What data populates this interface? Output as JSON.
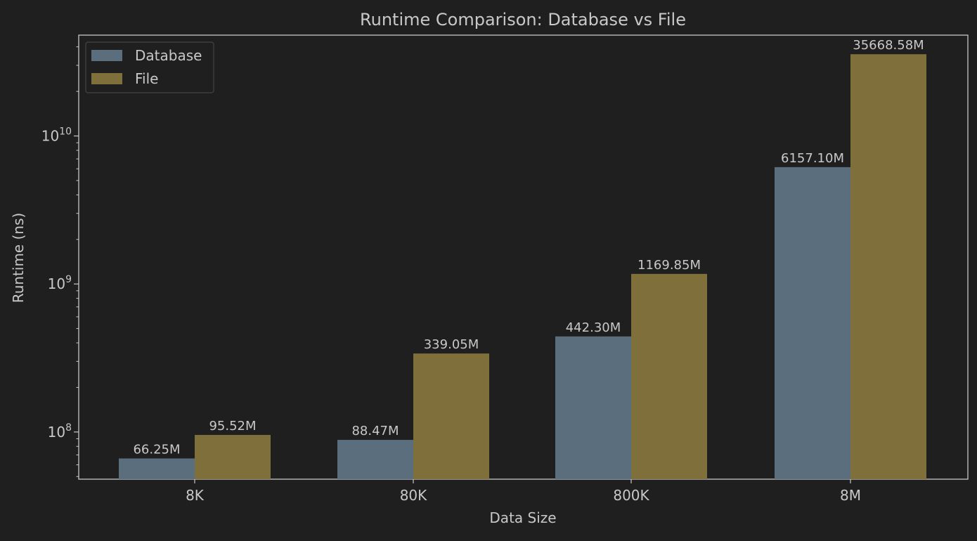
{
  "chart_data": {
    "type": "bar",
    "title": "Runtime Comparison: Database vs File",
    "xlabel": "Data Size",
    "ylabel": "Runtime (ns)",
    "categories": [
      "8K",
      "80K",
      "800K",
      "8M"
    ],
    "yscale": "log",
    "ylim": [
      48000000,
      48000000000
    ],
    "yticks": [
      {
        "value": 100000000,
        "base": "10",
        "exp": "8"
      },
      {
        "value": 1000000000,
        "base": "10",
        "exp": "9"
      },
      {
        "value": 10000000000,
        "base": "10",
        "exp": "10"
      }
    ],
    "grid": false,
    "legend_position": "top-left",
    "series": [
      {
        "name": "Database",
        "color": "#5a6e7e",
        "values": [
          66250000,
          88470000,
          442300000,
          6157100000
        ],
        "labels": [
          "66.25M",
          "88.47M",
          "442.30M",
          "6157.10M"
        ]
      },
      {
        "name": "File",
        "color": "#7f6f3a",
        "values": [
          95520000,
          339050000,
          1169850000,
          35668580000
        ],
        "labels": [
          "95.52M",
          "339.05M",
          "1169.85M",
          "35668.58M"
        ]
      }
    ],
    "colors": {
      "background": "#1f1f1f",
      "text": "#c8c8c8",
      "axis": "#c8c8c8",
      "legend_border": "#444444"
    }
  }
}
